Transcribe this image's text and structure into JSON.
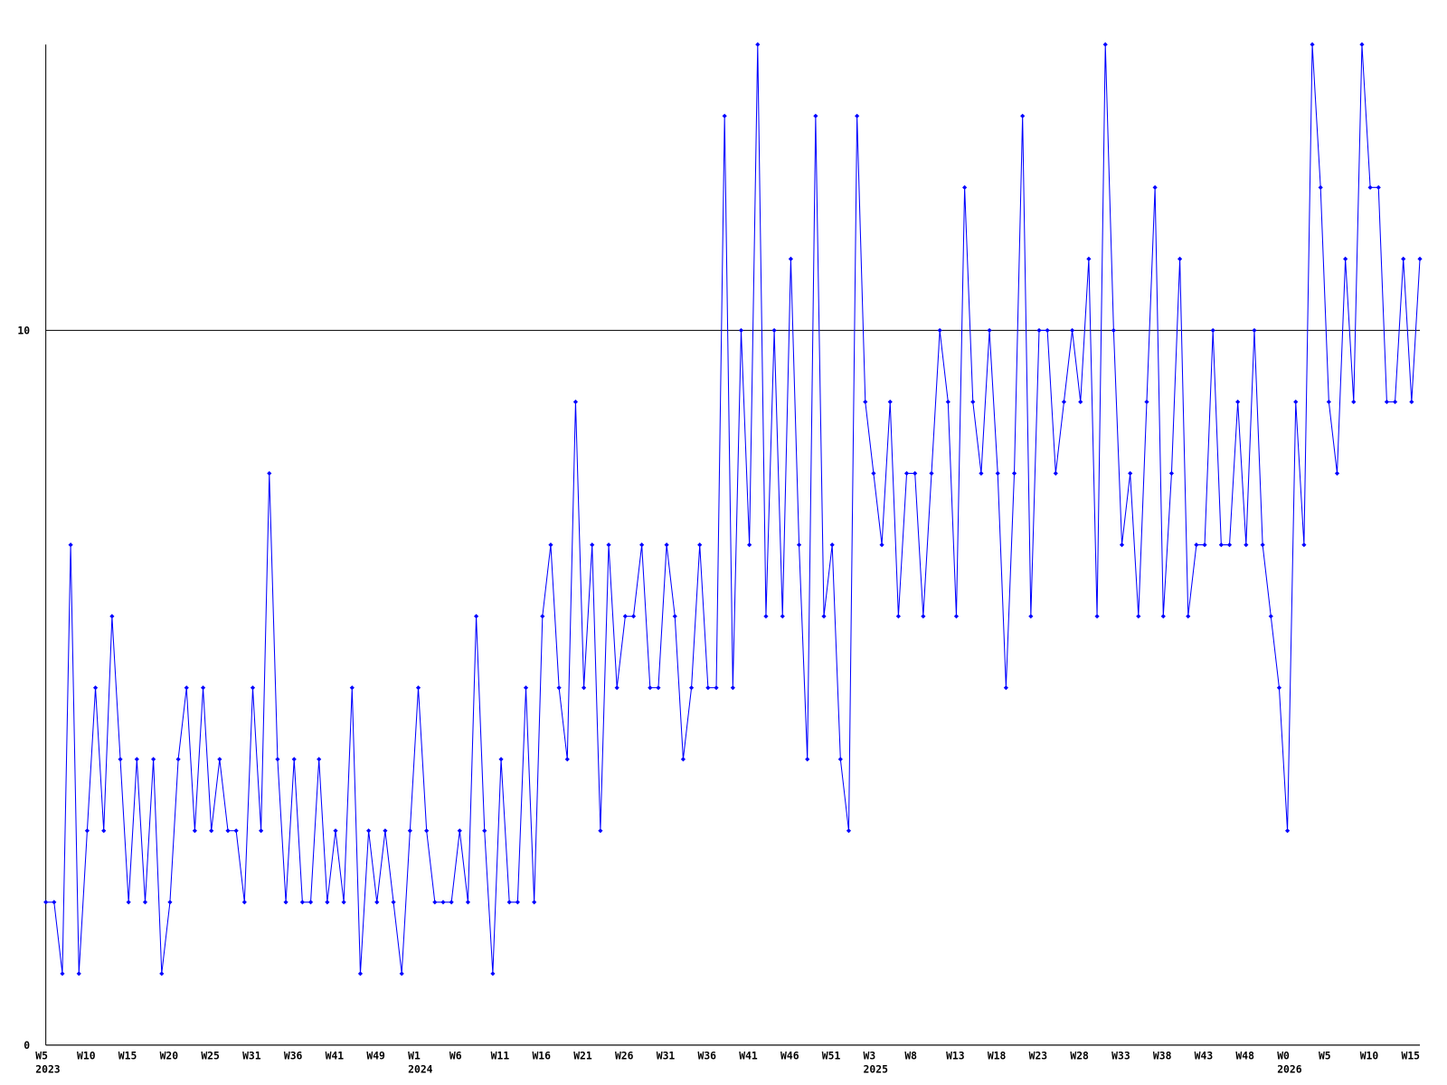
{
  "chart_data": {
    "type": "line",
    "categories": [
      "W5\n2023",
      null,
      null,
      null,
      null,
      "W10",
      null,
      null,
      null,
      null,
      "W15",
      null,
      null,
      null,
      null,
      "W20",
      null,
      null,
      null,
      null,
      "W25",
      null,
      null,
      null,
      null,
      "W31",
      null,
      null,
      null,
      null,
      "W36",
      null,
      null,
      null,
      null,
      "W41",
      null,
      null,
      null,
      null,
      "W49",
      null,
      null,
      null,
      null,
      "W1\n2024",
      null,
      null,
      null,
      null,
      "W6",
      null,
      null,
      null,
      null,
      "W11",
      null,
      null,
      null,
      null,
      "W16",
      null,
      null,
      null,
      null,
      "W21",
      null,
      null,
      null,
      null,
      "W26",
      null,
      null,
      null,
      null,
      "W31",
      null,
      null,
      null,
      null,
      "W36",
      null,
      null,
      null,
      null,
      "W41",
      null,
      null,
      null,
      null,
      "W46",
      null,
      null,
      null,
      null,
      "W51",
      null,
      null,
      null,
      null,
      "W3\n2025",
      null,
      null,
      null,
      null,
      "W8",
      null,
      null,
      null,
      null,
      "W13",
      null,
      null,
      null,
      null,
      "W18",
      null,
      null,
      null,
      null,
      "W23",
      null,
      null,
      null,
      null,
      "W28",
      null,
      null,
      null,
      null,
      "W33",
      null,
      null,
      null,
      null,
      "W38",
      null,
      null,
      null,
      null,
      "W43",
      null,
      null,
      null,
      null,
      "W48",
      null,
      null,
      null,
      null,
      "W0\n2026",
      null,
      null,
      null,
      null,
      "W5",
      null,
      null,
      null,
      null,
      "W10",
      null,
      null,
      null,
      null,
      "W15",
      null
    ],
    "series": [
      {
        "color": "#0000ff",
        "values": [
          2,
          2,
          1,
          7,
          1,
          3,
          5,
          3,
          6,
          4,
          2,
          4,
          2,
          4,
          1,
          2,
          4,
          5,
          3,
          5,
          3,
          4,
          3,
          3,
          2,
          5,
          3,
          8,
          4,
          2,
          4,
          2,
          2,
          4,
          2,
          3,
          2,
          5,
          1,
          3,
          2,
          3,
          2,
          1,
          3,
          5,
          3,
          2,
          2,
          2,
          3,
          2,
          6,
          3,
          1,
          4,
          2,
          2,
          5,
          2,
          6,
          7,
          5,
          4,
          9,
          5,
          7,
          3,
          7,
          5,
          6,
          6,
          7,
          5,
          5,
          7,
          6,
          4,
          5,
          7,
          5,
          5,
          13,
          5,
          10,
          7,
          14,
          6,
          10,
          6,
          11,
          7,
          4,
          13,
          6,
          7,
          4,
          3,
          13,
          9,
          8,
          7,
          9,
          6,
          8,
          8,
          6,
          8,
          10,
          9,
          6,
          12,
          9,
          8,
          10,
          8,
          5,
          8,
          13,
          6,
          10,
          10,
          8,
          9,
          10,
          9,
          11,
          6,
          14,
          10,
          7,
          8,
          6,
          9,
          12,
          6,
          8,
          11,
          6,
          7,
          7,
          10,
          7,
          7,
          9,
          7,
          10,
          7,
          6,
          5,
          3,
          9,
          7,
          14,
          12,
          9,
          8,
          11,
          9,
          14,
          12,
          12,
          9,
          9,
          11,
          9,
          11
        ]
      }
    ],
    "ylim": [
      0,
      14
    ],
    "yticks": [
      0,
      10
    ],
    "grid": true
  }
}
